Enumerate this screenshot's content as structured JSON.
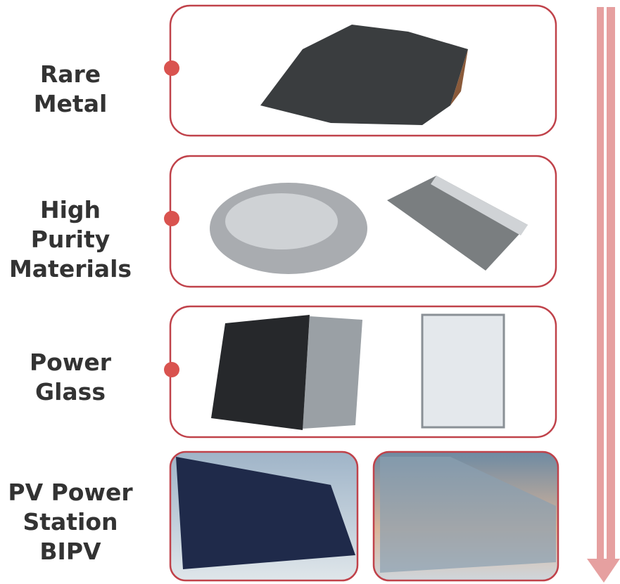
{
  "stages": [
    {
      "lines": [
        "Rare",
        "Metal"
      ]
    },
    {
      "lines": [
        "High",
        "Purity",
        "Materials"
      ]
    },
    {
      "lines": [
        "Power",
        "Glass"
      ]
    },
    {
      "lines": [
        "PV Power",
        "Station",
        "BIPV"
      ]
    }
  ]
}
